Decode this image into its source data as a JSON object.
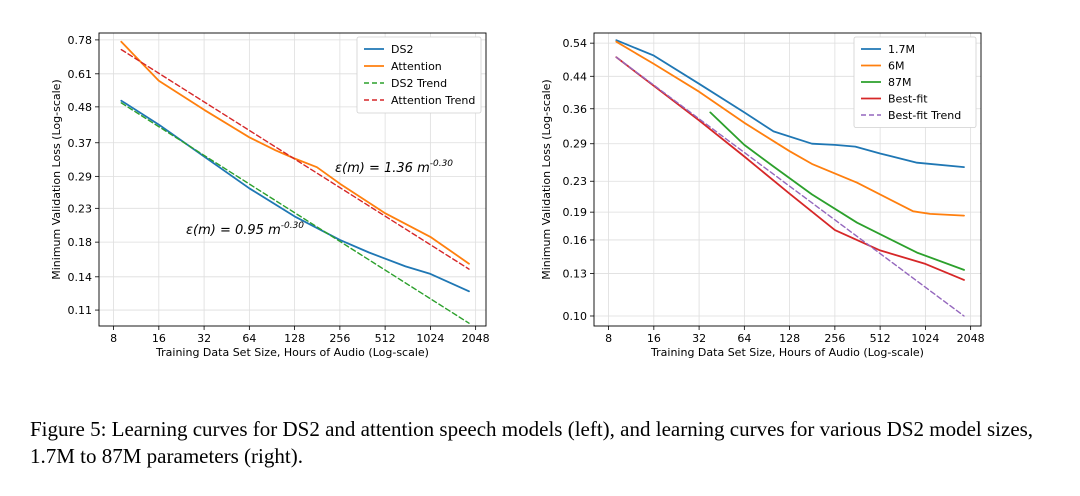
{
  "caption": "Figure 5: Learning curves for DS2 and attention speech models (left), and learning curves for various DS2 model sizes, 1.7M to 87M parameters (right).",
  "chart_data": [
    {
      "type": "line",
      "x_scale": "log2",
      "y_scale": "log",
      "xlabel": "Training Data Set Size, Hours of Audio (Log-scale)",
      "ylabel": "Minimum Validation Loss (Log-scale)",
      "xlim": [
        6.4,
        2400
      ],
      "ylim": [
        0.098,
        0.82
      ],
      "x_ticks": [
        8,
        16,
        32,
        64,
        128,
        256,
        512,
        1024,
        2048
      ],
      "x_tick_labels": [
        "8",
        "16",
        "32",
        "64",
        "128",
        "256",
        "512",
        "1024",
        "2048"
      ],
      "y_ticks": [
        0.11,
        0.14,
        0.18,
        0.23,
        0.29,
        0.37,
        0.48,
        0.61,
        0.78
      ],
      "y_tick_labels": [
        "0.11",
        "0.14",
        "0.18",
        "0.23",
        "0.29",
        "0.37",
        "0.48",
        "0.61",
        "0.78"
      ],
      "grid": true,
      "legend_position": "top-right",
      "series": [
        {
          "name": "DS2",
          "color": "#1f77b4",
          "dash": "solid",
          "x": [
            9,
            16,
            32,
            64,
            128,
            256,
            400,
            700,
            1024,
            1850
          ],
          "y": [
            0.502,
            0.422,
            0.335,
            0.266,
            0.217,
            0.183,
            0.167,
            0.151,
            0.143,
            0.126
          ]
        },
        {
          "name": "Attention",
          "color": "#ff7f0e",
          "dash": "solid",
          "x": [
            9,
            16,
            32,
            64,
            96,
            128,
            180,
            256,
            512,
            1024,
            1850
          ],
          "y": [
            0.77,
            0.58,
            0.47,
            0.385,
            0.35,
            0.33,
            0.31,
            0.275,
            0.222,
            0.187,
            0.154
          ]
        },
        {
          "name": "DS2 Trend",
          "color": "#2ca02c",
          "dash": "dashed",
          "x": [
            9,
            1850
          ],
          "y": [
            0.494,
            0.1
          ]
        },
        {
          "name": "Attention Trend",
          "color": "#d62728",
          "dash": "dashed",
          "x": [
            9,
            1850
          ],
          "y": [
            0.727,
            0.148
          ]
        }
      ],
      "annotations": [
        {
          "base": "ε(m) = 1.36 m",
          "exp": "-0.30"
        },
        {
          "base": "ε(m) = 0.95 m",
          "exp": "-0.30"
        }
      ]
    },
    {
      "type": "line",
      "x_scale": "log2",
      "y_scale": "log",
      "xlabel": "Training Data Set Size, Hours of Audio (Log-scale)",
      "ylabel": "Minimum Validation Loss (Log-scale)",
      "xlim": [
        6.4,
        2400
      ],
      "ylim": [
        0.094,
        0.575
      ],
      "x_ticks": [
        8,
        16,
        32,
        64,
        128,
        256,
        512,
        1024,
        2048
      ],
      "x_tick_labels": [
        "8",
        "16",
        "32",
        "64",
        "128",
        "256",
        "512",
        "1024",
        "2048"
      ],
      "y_ticks": [
        0.1,
        0.13,
        0.16,
        0.19,
        0.23,
        0.29,
        0.36,
        0.44,
        0.54
      ],
      "y_tick_labels": [
        "0.10",
        "0.13",
        "0.16",
        "0.19",
        "0.23",
        "0.29",
        "0.36",
        "0.44",
        "0.54"
      ],
      "grid": true,
      "legend_position": "top-right",
      "series": [
        {
          "name": "1.7M",
          "color": "#1f77b4",
          "dash": "solid",
          "x": [
            9,
            16,
            32,
            64,
            100,
            180,
            256,
            350,
            512,
            900,
            1850
          ],
          "y": [
            0.55,
            0.5,
            0.42,
            0.352,
            0.313,
            0.29,
            0.288,
            0.285,
            0.273,
            0.258,
            0.251
          ]
        },
        {
          "name": "6M",
          "color": "#ff7f0e",
          "dash": "solid",
          "x": [
            9,
            16,
            32,
            64,
            128,
            180,
            360,
            850,
            1100,
            1850
          ],
          "y": [
            0.545,
            0.475,
            0.4,
            0.33,
            0.277,
            0.256,
            0.228,
            0.191,
            0.188,
            0.186
          ]
        },
        {
          "name": "87M",
          "color": "#2ca02c",
          "dash": "solid",
          "x": [
            38,
            64,
            100,
            180,
            360,
            900,
            1850
          ],
          "y": [
            0.352,
            0.288,
            0.252,
            0.212,
            0.178,
            0.148,
            0.133
          ]
        },
        {
          "name": "Best-fit",
          "color": "#d62728",
          "dash": "solid",
          "x": [
            9,
            16,
            32,
            64,
            128,
            256,
            512,
            1024,
            1850
          ],
          "y": [
            0.495,
            0.415,
            0.335,
            0.268,
            0.213,
            0.17,
            0.15,
            0.138,
            0.125
          ]
        },
        {
          "name": "Best-fit Trend",
          "color": "#9467bd",
          "dash": "dashed",
          "x": [
            9,
            1850
          ],
          "y": [
            0.495,
            0.1
          ]
        }
      ]
    }
  ]
}
